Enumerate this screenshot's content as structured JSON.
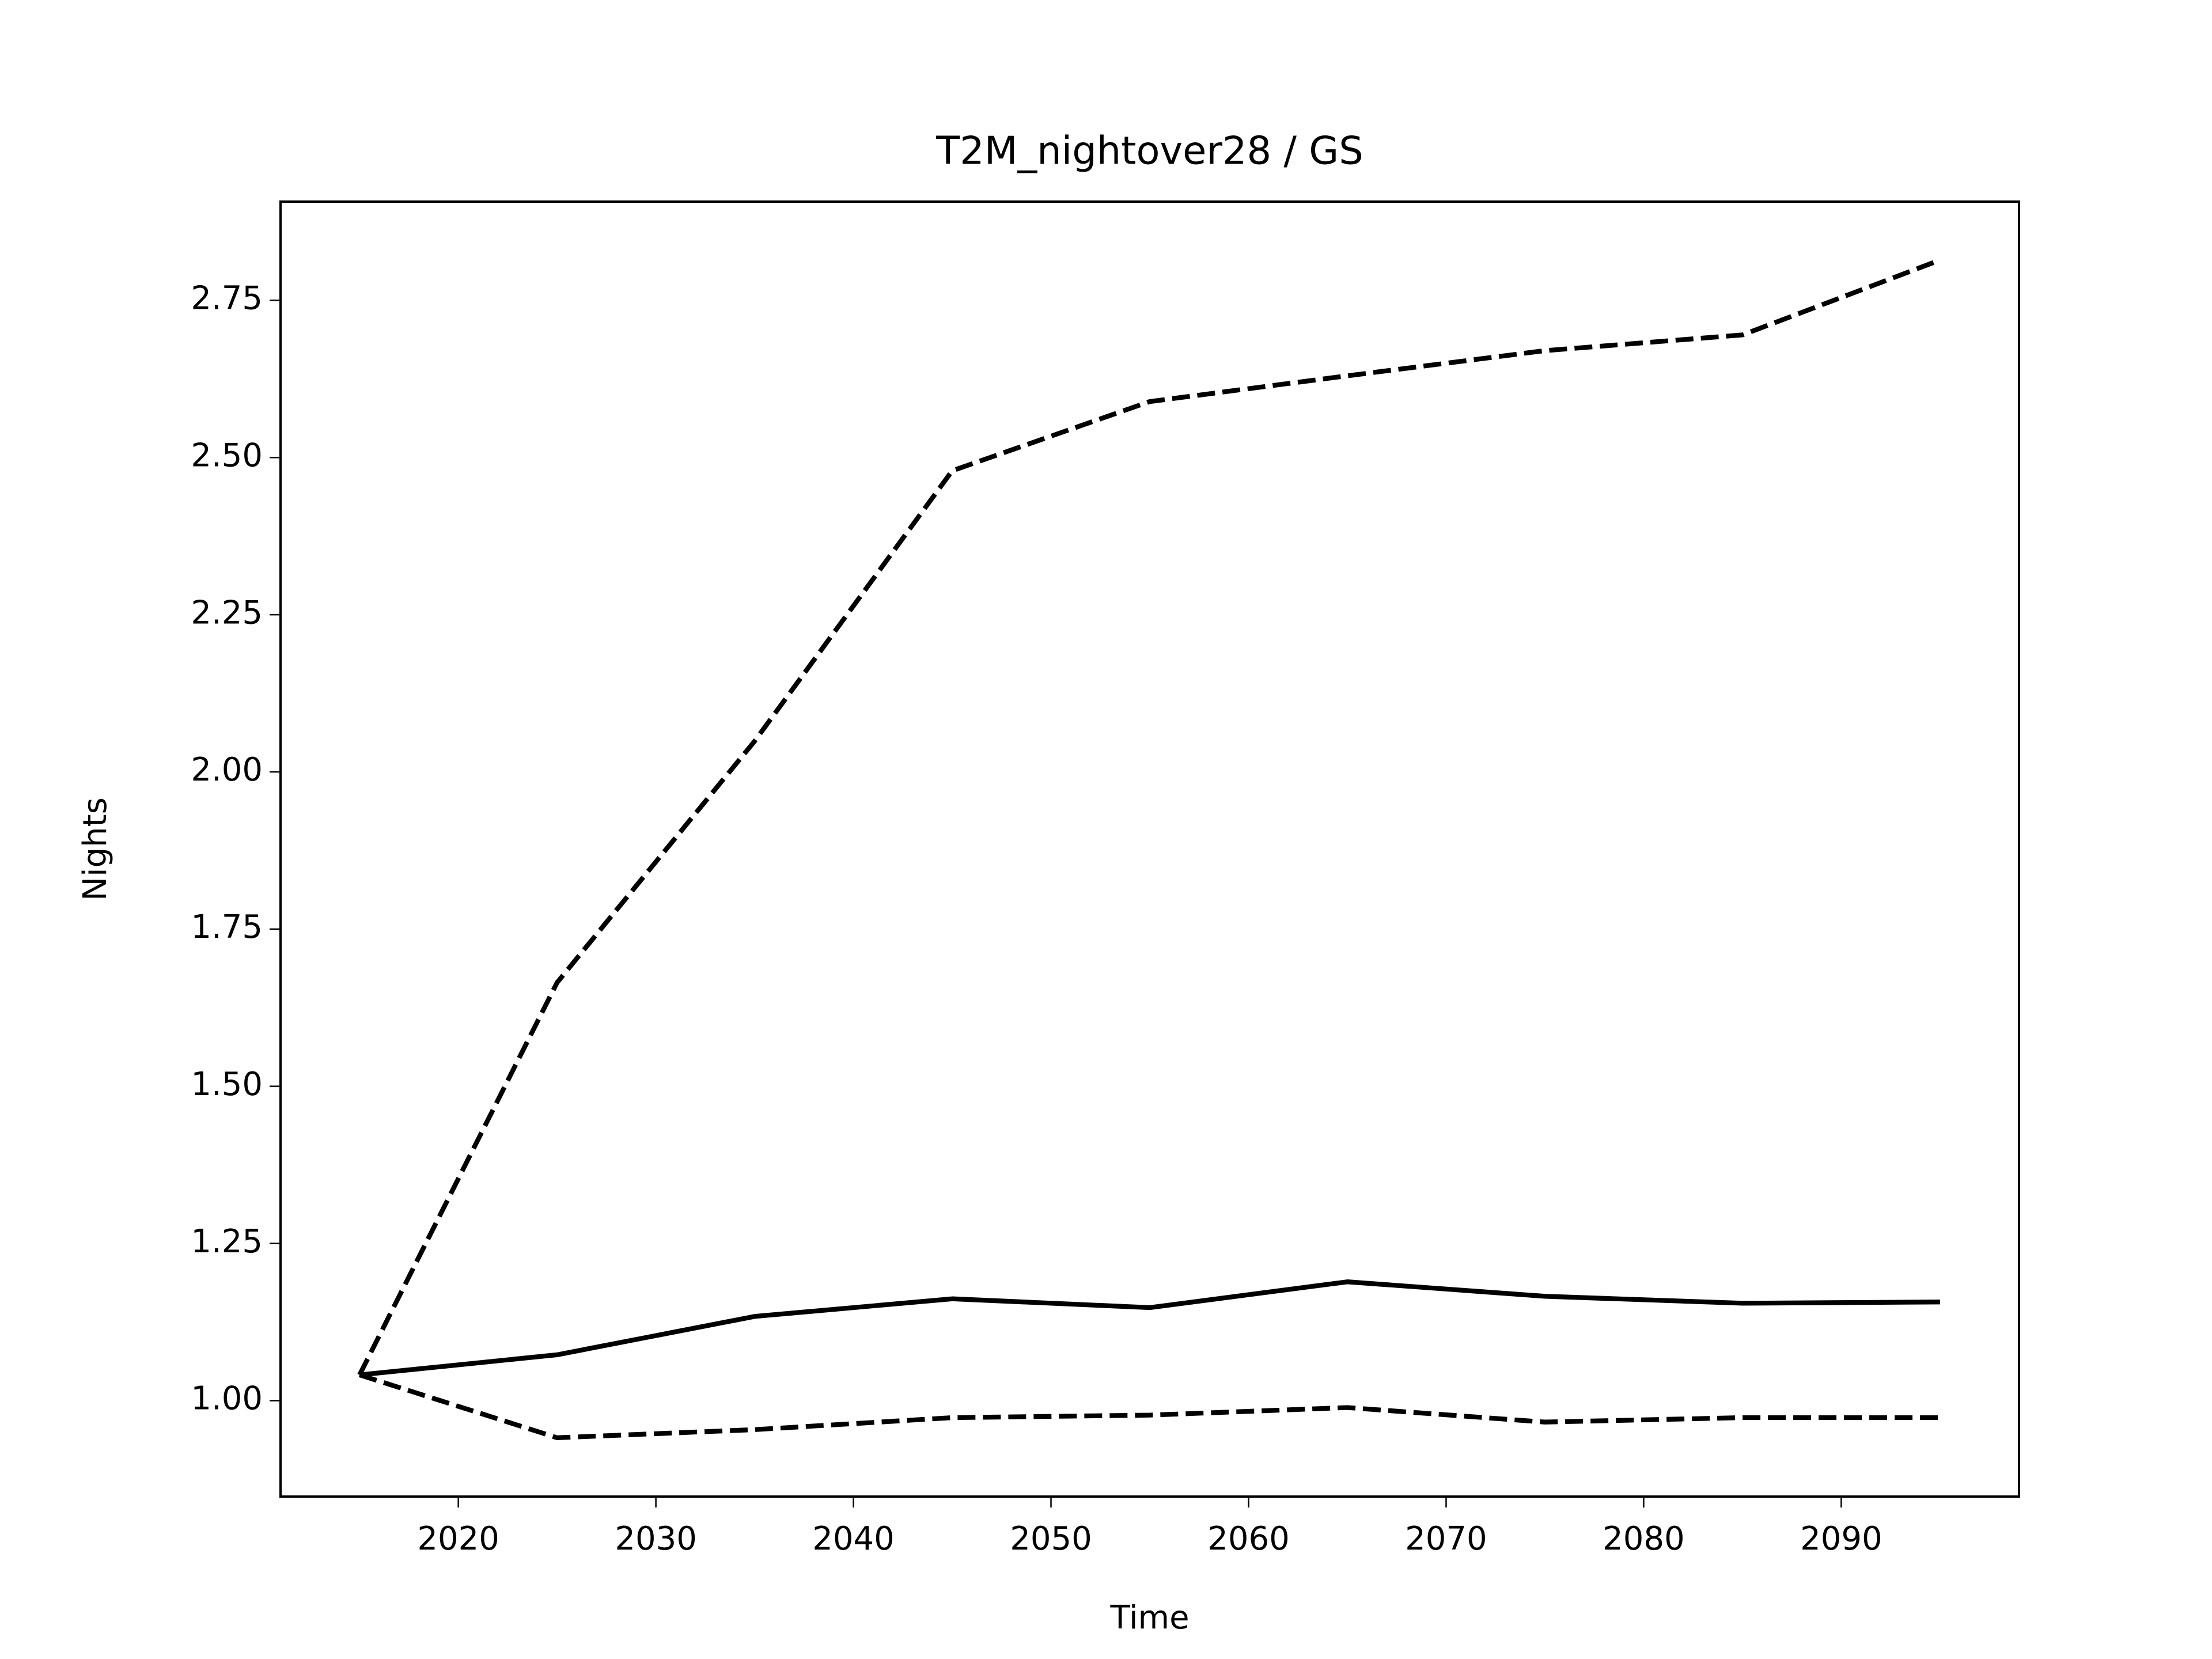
{
  "chart_data": {
    "type": "line",
    "title": "T2M_nightover28 / GS",
    "xlabel": "Time",
    "ylabel": "Nights",
    "x": [
      2015,
      2025,
      2035,
      2045,
      2055,
      2065,
      2075,
      2085,
      2095
    ],
    "series": [
      {
        "color": "#000000",
        "style": "solid",
        "values": [
          1.041,
          1.073,
          1.134,
          1.162,
          1.148,
          1.189,
          1.166,
          1.155,
          1.157
        ]
      },
      {
        "color": "#000000",
        "style": "dashed",
        "values": [
          1.041,
          1.665,
          2.049,
          2.479,
          2.589,
          2.63,
          2.67,
          2.695,
          2.814
        ]
      },
      {
        "color": "#000000",
        "style": "dashed",
        "values": [
          1.041,
          0.941,
          0.954,
          0.973,
          0.977,
          0.989,
          0.966,
          0.973,
          0.973
        ]
      }
    ],
    "xlim": [
      2011,
      2099
    ],
    "xticks": [
      2020,
      2030,
      2040,
      2050,
      2060,
      2070,
      2080,
      2090
    ],
    "ylim": [
      0.8475,
      2.907
    ],
    "yticks": [
      {
        "value": 1,
        "label": "1.00"
      },
      1.25,
      {
        "value": 1.5,
        "label": "1.50"
      },
      1.75,
      {
        "value": 2,
        "label": "2.00"
      },
      2.25,
      {
        "value": 2.5,
        "label": "2.50"
      },
      2.75
    ],
    "grid": false
  }
}
